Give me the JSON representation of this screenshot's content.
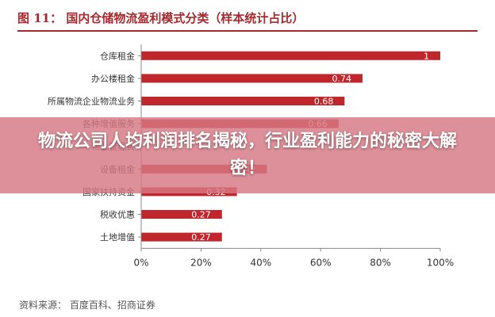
{
  "figure": {
    "title": "图 11： 国内仓储物流盈利模式分类（样本统计占比）",
    "source": "资料来源： 百度百科、招商证券"
  },
  "banner": {
    "headline": "物流公司人均利润排名揭秘，行业盈利能力的秘密大解密！"
  },
  "colors": {
    "bar": "#c0272d",
    "title": "#a32a2e",
    "banner": "#d67882"
  },
  "chart_data": {
    "type": "bar",
    "orientation": "horizontal",
    "title": "图 11： 国内仓储物流盈利模式分类（样本统计占比）",
    "xlabel": "",
    "ylabel": "",
    "categories": [
      "仓库租金",
      "办公楼租金",
      "所属物流企业物流业务",
      "各种增值服务",
      "物业管理费",
      "设备租金",
      "国家扶持资金",
      "税收优惠",
      "土地增值"
    ],
    "values": [
      1,
      0.74,
      0.68,
      0.66,
      null,
      0.42,
      0.32,
      0.27,
      0.27
    ],
    "data_labels": [
      "1",
      "0.74",
      "0.68",
      "0.66",
      "",
      "0.42",
      "0.32",
      "0.27",
      "0.27"
    ],
    "xlim": [
      0,
      1
    ],
    "xticks": [
      "0%",
      "20%",
      "40%",
      "60%",
      "80%",
      "100%"
    ],
    "grid": false,
    "legend": "none"
  }
}
